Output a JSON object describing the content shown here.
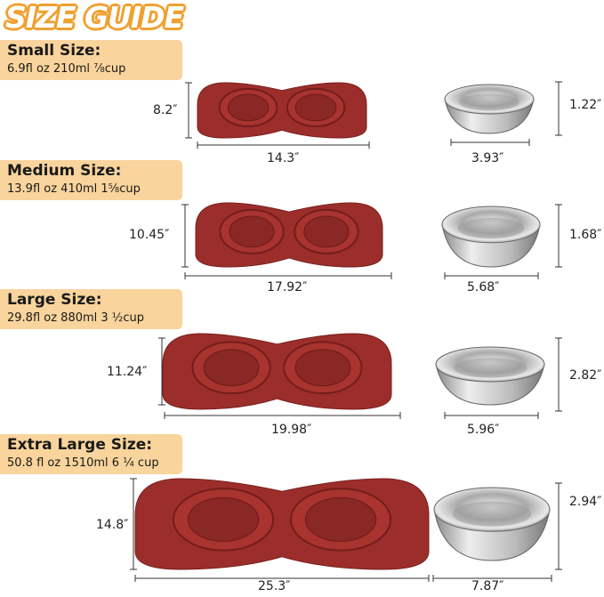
{
  "title": "SIZE GUIDE",
  "colors": {
    "title": "#f0a030",
    "label_bg": "#f9d49c",
    "mat": "#9b2e2b",
    "bowl": "#c8c8c8"
  },
  "sizes": [
    {
      "name": "Small Size:",
      "capacity": "6.9fl oz 210ml  ⅞cup",
      "mat_height": "8.2″",
      "mat_width": "14.3″",
      "bowl_height": "1.22″",
      "bowl_width": "3.93″"
    },
    {
      "name": "Medium Size:",
      "capacity": "13.9fl oz 410ml  1⅝cup",
      "mat_height": "10.45″",
      "mat_width": "17.92″",
      "bowl_height": "1.68″",
      "bowl_width": "5.68″"
    },
    {
      "name": "Large Size:",
      "capacity": "29.8fl oz 880ml 3 ½cup",
      "mat_height": "11.24″",
      "mat_width": "19.98″",
      "bowl_height": "2.82″",
      "bowl_width": "5.96″"
    },
    {
      "name": "Extra Large Size:",
      "capacity": "50.8 fl oz 1510ml 6 ¼ cup",
      "mat_height": "14.8″",
      "mat_width": "25.3″",
      "bowl_height": "2.94″",
      "bowl_width": "7.87″"
    }
  ]
}
